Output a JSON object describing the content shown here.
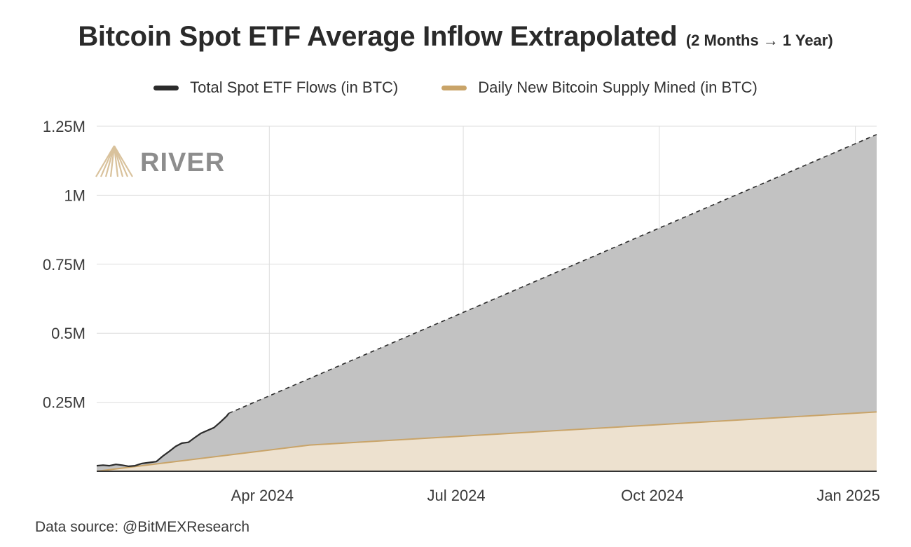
{
  "title": "Bitcoin Spot ETF Average Inflow Extrapolated",
  "subtitle": "(2 Months → 1 Year)",
  "legend": [
    {
      "label": "Total Spot ETF Flows (in BTC)",
      "color": "#2b2b2b"
    },
    {
      "label": "Daily New Bitcoin Supply Mined (in BTC)",
      "color": "#c9a469"
    }
  ],
  "watermark": "RIVER",
  "source": "Data source: @BitMEXResearch",
  "colors": {
    "etf_fill": "#c2c2c2",
    "supply_fill": "#ede1cf",
    "supply_line": "#c9a469",
    "etf_line": "#2b2b2b",
    "grid": "#dddddd",
    "axis": "#333333"
  },
  "chart_data": {
    "type": "area",
    "x_range": [
      "2024-01-11",
      "2025-01-11"
    ],
    "ylim": [
      0,
      1250000
    ],
    "y_ticks": [
      {
        "value": 250000,
        "label": "0.25M"
      },
      {
        "value": 500000,
        "label": "0.5M"
      },
      {
        "value": 750000,
        "label": "0.75M"
      },
      {
        "value": 1000000,
        "label": "1M"
      },
      {
        "value": 1250000,
        "label": "1.25M"
      }
    ],
    "x_ticks": [
      {
        "date": "2024-04-01",
        "label": "Apr 2024"
      },
      {
        "date": "2024-07-01",
        "label": "Jul 2024"
      },
      {
        "date": "2024-10-01",
        "label": "Oct 2024"
      },
      {
        "date": "2025-01-01",
        "label": "Jan 2025"
      }
    ],
    "grid": true,
    "legend_position": "top-center",
    "series": [
      {
        "name": "Total Spot ETF Flows (in BTC)",
        "style": "solid",
        "points": [
          [
            "2024-01-11",
            20000
          ],
          [
            "2024-01-14",
            22000
          ],
          [
            "2024-01-17",
            20000
          ],
          [
            "2024-01-20",
            25000
          ],
          [
            "2024-01-23",
            22000
          ],
          [
            "2024-01-26",
            18000
          ],
          [
            "2024-01-29",
            20000
          ],
          [
            "2024-02-01",
            28000
          ],
          [
            "2024-02-05",
            32000
          ],
          [
            "2024-02-08",
            35000
          ],
          [
            "2024-02-11",
            55000
          ],
          [
            "2024-02-14",
            72000
          ],
          [
            "2024-02-17",
            90000
          ],
          [
            "2024-02-20",
            102000
          ],
          [
            "2024-02-23",
            105000
          ],
          [
            "2024-02-26",
            122000
          ],
          [
            "2024-02-29",
            138000
          ],
          [
            "2024-03-03",
            148000
          ],
          [
            "2024-03-06",
            158000
          ],
          [
            "2024-03-09",
            178000
          ],
          [
            "2024-03-12",
            200000
          ],
          [
            "2024-03-13",
            210000
          ]
        ]
      },
      {
        "name": "Total Spot ETF Flows (in BTC)",
        "style": "dashed",
        "points": [
          [
            "2024-03-13",
            210000
          ],
          [
            "2025-01-11",
            1220000
          ]
        ]
      },
      {
        "name": "Daily New Bitcoin Supply Mined (in BTC)",
        "points": [
          [
            "2024-01-11",
            0
          ],
          [
            "2024-04-20",
            95000
          ],
          [
            "2025-01-11",
            215000
          ]
        ]
      }
    ]
  }
}
